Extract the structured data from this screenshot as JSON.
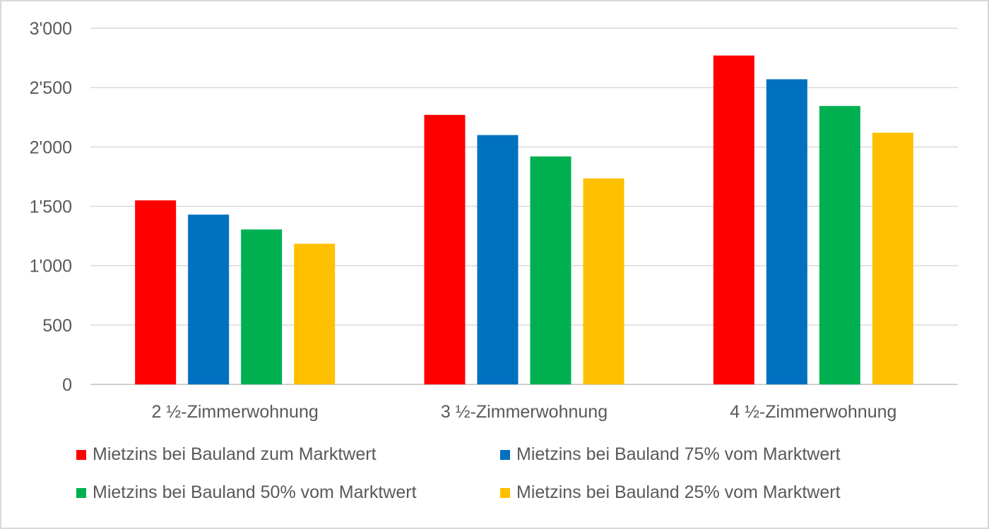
{
  "chart_data": {
    "type": "bar",
    "title": "",
    "xlabel": "",
    "ylabel": "",
    "categories": [
      "2 ½-Zimmerwohnung",
      "3 ½-Zimmerwohnung",
      "4 ½-Zimmerwohnung"
    ],
    "y_ticks": [
      "0",
      "500",
      "1'000",
      "1'500",
      "2'000",
      "2'500",
      "3'000"
    ],
    "ylim": [
      0,
      3000
    ],
    "grid": true,
    "legend_position": "bottom",
    "series": [
      {
        "name": "Mietzins bei Bauland zum Marktwert",
        "color": "#ff0000",
        "values": [
          1550,
          2270,
          2770
        ]
      },
      {
        "name": "Mietzins bei Bauland 75% vom Marktwert",
        "color": "#0070c0",
        "values": [
          1430,
          2100,
          2570
        ]
      },
      {
        "name": "Mietzins bei Bauland 50% vom Marktwert",
        "color": "#00b050",
        "values": [
          1305,
          1920,
          2345
        ]
      },
      {
        "name": "Mietzins bei Bauland 25% vom Marktwert",
        "color": "#ffc000",
        "values": [
          1185,
          1735,
          2120
        ]
      }
    ]
  }
}
